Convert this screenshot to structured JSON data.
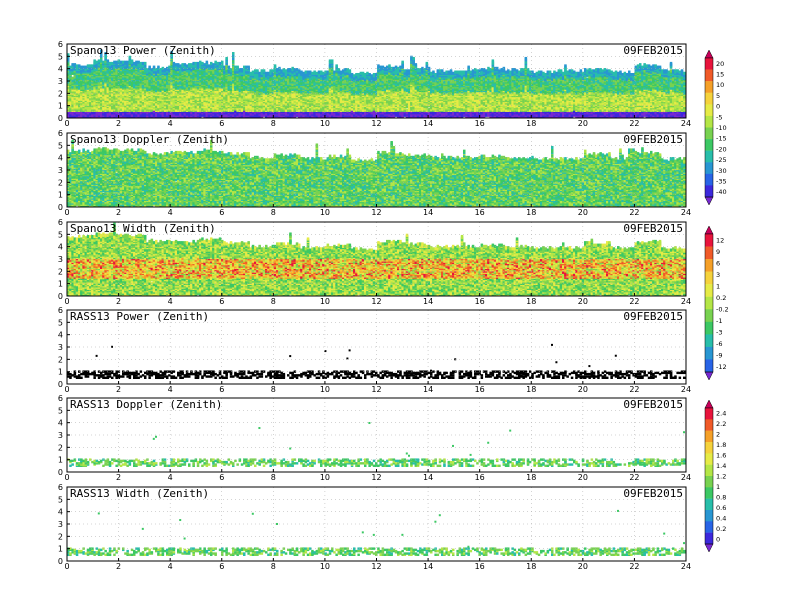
{
  "date": "09FEB2015",
  "chart_data": [
    {
      "type": "heatmap",
      "title": "Spano13 Power (Zenith)",
      "date": "09FEB2015",
      "xlim": [
        0,
        24
      ],
      "ylim": [
        0,
        6
      ],
      "x_ticks": [
        "0",
        "2",
        "4",
        "6",
        "8",
        "10",
        "12",
        "14",
        "16",
        "18",
        "20",
        "22",
        "24"
      ],
      "y_ticks": [
        "0",
        "1",
        "2",
        "3",
        "4",
        "5",
        "6"
      ],
      "grid": true,
      "data_top_by_hour": [
        4.3,
        4.6,
        4.6,
        4.1,
        4.4,
        4.5,
        4.1,
        3.8,
        4.0,
        3.7,
        3.9,
        3.6,
        4.2,
        4.0,
        3.8,
        3.9,
        4.0,
        3.9,
        3.7,
        3.8,
        4.0,
        3.7,
        4.3,
        3.8
      ],
      "colorbar_group": "power"
    },
    {
      "type": "heatmap",
      "title": "Spano13 Doppler (Zenith)",
      "date": "09FEB2015",
      "xlim": [
        0,
        24
      ],
      "ylim": [
        0,
        6
      ],
      "x_ticks": [
        "0",
        "2",
        "4",
        "6",
        "8",
        "10",
        "12",
        "14",
        "16",
        "18",
        "20",
        "22",
        "24"
      ],
      "y_ticks": [
        "0",
        "1",
        "2",
        "3",
        "4",
        "5",
        "6"
      ],
      "grid": true,
      "data_top_by_hour": [
        4.5,
        4.7,
        4.6,
        4.3,
        4.4,
        4.6,
        4.3,
        4.0,
        4.2,
        3.9,
        4.1,
        3.8,
        4.4,
        4.2,
        4.0,
        4.0,
        4.1,
        4.0,
        3.9,
        3.9,
        4.3,
        3.9,
        4.4,
        3.9
      ],
      "colorbar_group": "power"
    },
    {
      "type": "heatmap",
      "title": "Spano13 Width (Zenith)",
      "date": "09FEB2015",
      "xlim": [
        0,
        24
      ],
      "ylim": [
        0,
        6
      ],
      "x_ticks": [
        "0",
        "2",
        "4",
        "6",
        "8",
        "10",
        "12",
        "14",
        "16",
        "18",
        "20",
        "22",
        "24"
      ],
      "y_ticks": [
        "0",
        "1",
        "2",
        "3",
        "4",
        "5",
        "6"
      ],
      "grid": true,
      "data_top_by_hour": [
        4.8,
        5.0,
        4.9,
        4.4,
        4.4,
        4.6,
        4.3,
        4.0,
        4.2,
        3.9,
        4.1,
        3.8,
        4.4,
        4.2,
        4.0,
        4.0,
        4.1,
        4.0,
        3.9,
        3.9,
        4.3,
        3.9,
        4.4,
        3.9
      ],
      "colorbar_group": "width"
    },
    {
      "type": "scatter",
      "title": "RASS13 Power (Zenith)",
      "date": "09FEB2015",
      "xlim": [
        0,
        24
      ],
      "ylim": [
        0,
        6
      ],
      "x_ticks": [
        "0",
        "2",
        "4",
        "6",
        "8",
        "10",
        "12",
        "14",
        "16",
        "18",
        "20",
        "22",
        "24"
      ],
      "y_ticks": [
        "0",
        "1",
        "2",
        "3",
        "4",
        "5",
        "6"
      ],
      "grid": true,
      "band": [
        0.5,
        1.0
      ],
      "colorbar_group": "width"
    },
    {
      "type": "scatter",
      "title": "RASS13 Doppler (Zenith)",
      "date": "09FEB2015",
      "xlim": [
        0,
        24
      ],
      "ylim": [
        0,
        6
      ],
      "x_ticks": [
        "0",
        "2",
        "4",
        "6",
        "8",
        "10",
        "12",
        "14",
        "16",
        "18",
        "20",
        "22",
        "24"
      ],
      "y_ticks": [
        "0",
        "1",
        "2",
        "3",
        "4",
        "5",
        "6"
      ],
      "grid": true,
      "band": [
        0.5,
        1.0
      ],
      "colorbar_group": "rass"
    },
    {
      "type": "scatter",
      "title": "RASS13 Width (Zenith)",
      "date": "09FEB2015",
      "xlim": [
        0,
        24
      ],
      "ylim": [
        0,
        6
      ],
      "x_ticks": [
        "0",
        "2",
        "4",
        "6",
        "8",
        "10",
        "12",
        "14",
        "16",
        "18",
        "20",
        "22",
        "24"
      ],
      "y_ticks": [
        "0",
        "1",
        "2",
        "3",
        "4",
        "5",
        "6"
      ],
      "grid": true,
      "band": [
        0.5,
        1.0
      ],
      "colorbar_group": "rass"
    }
  ],
  "colorbars": [
    {
      "name": "power",
      "labels": [
        "20",
        "15",
        "10",
        "5",
        "0",
        "-5",
        "-10",
        "-15",
        "-20",
        "-25",
        "-30",
        "-35",
        "-40"
      ],
      "colors": [
        "#c8005a",
        "#e8143c",
        "#f05a28",
        "#f5a028",
        "#f5d23c",
        "#e6eb46",
        "#b4e646",
        "#78d250",
        "#3cc864",
        "#28beaa",
        "#2896d2",
        "#2864e6",
        "#3c28dc",
        "#7828d2"
      ]
    },
    {
      "name": "width",
      "labels": [
        "12",
        "9",
        "6",
        "3",
        "1",
        "0.2",
        "-0.2",
        "-1",
        "-3",
        "-6",
        "-9",
        "-12"
      ],
      "colors": [
        "#c8005a",
        "#e8143c",
        "#f05a28",
        "#f5a028",
        "#f5d23c",
        "#e6eb46",
        "#b4e646",
        "#78d250",
        "#3cc864",
        "#28beaa",
        "#2896d2",
        "#2864e6",
        "#7828d2"
      ]
    },
    {
      "name": "rass",
      "labels": [
        "2.4",
        "2.2",
        "2",
        "1.8",
        "1.6",
        "1.4",
        "1.2",
        "1",
        "0.8",
        "0.6",
        "0.4",
        "0.2",
        "0"
      ],
      "colors": [
        "#c8005a",
        "#e8143c",
        "#f05a28",
        "#f5a028",
        "#f5d23c",
        "#e6eb46",
        "#b4e646",
        "#78d250",
        "#3cc864",
        "#28beaa",
        "#2896d2",
        "#2864e6",
        "#3c28dc",
        "#7828d2"
      ]
    }
  ]
}
